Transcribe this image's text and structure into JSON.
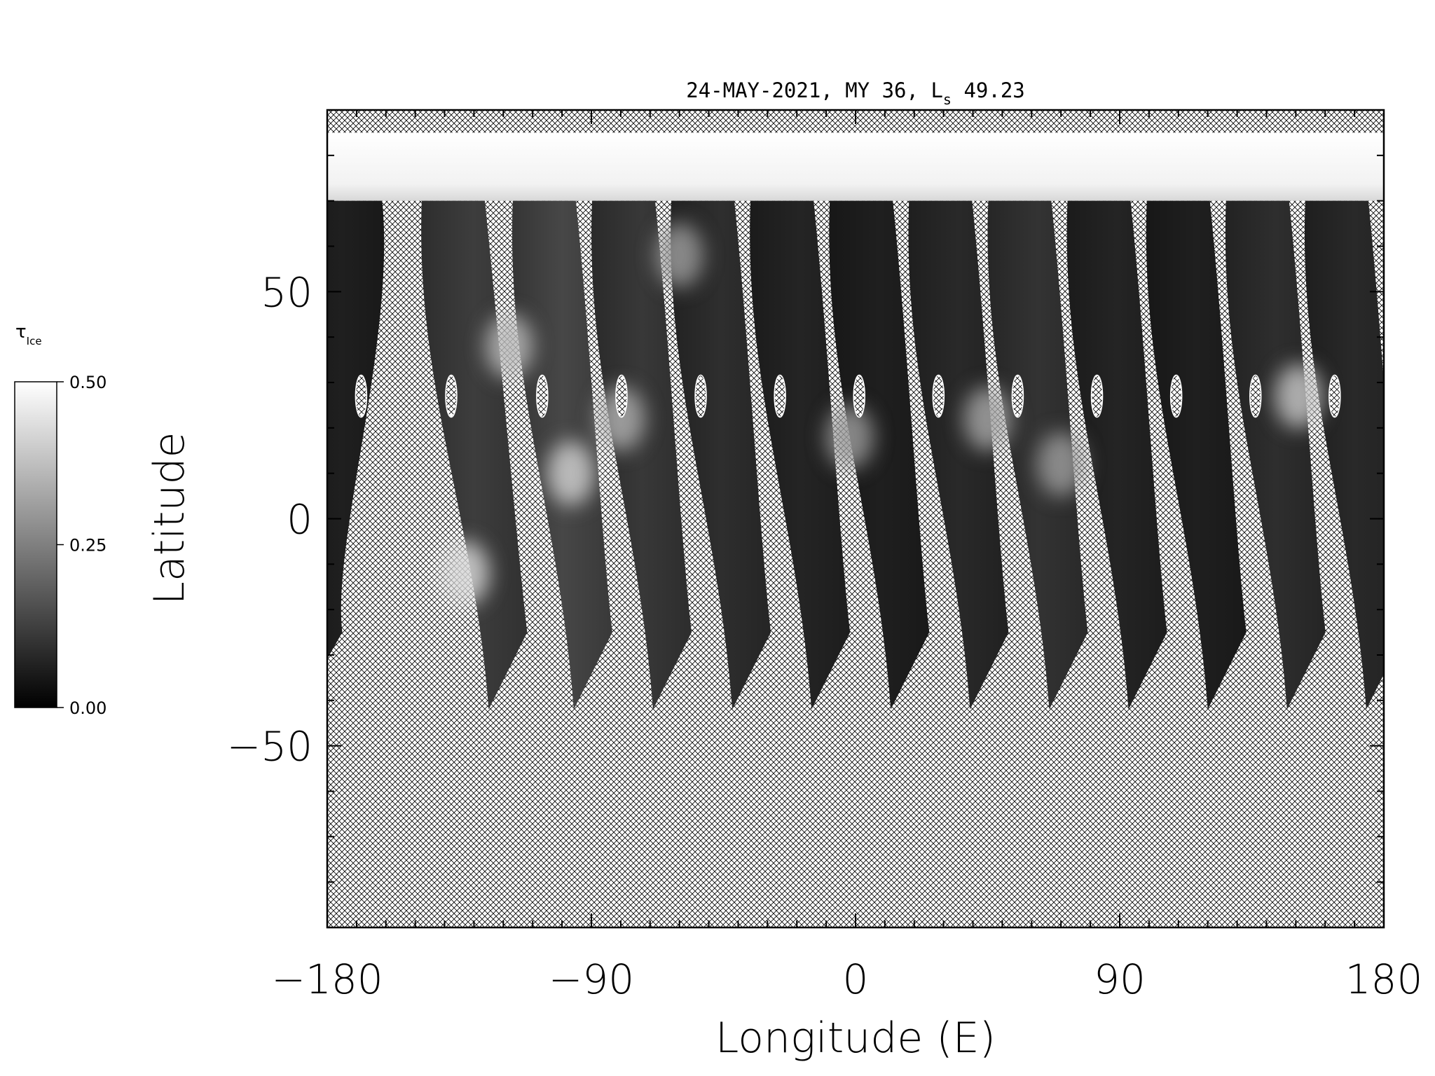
{
  "colors": {
    "background": "#ffffff",
    "axis": "#000000",
    "hatch": "#000000"
  },
  "chart_data": {
    "type": "heatmap",
    "title": {
      "date": "24-MAY-2021",
      "mars_year": "MY 36",
      "ls_symbol": "L",
      "ls_subscript": "s",
      "ls_value": "49.23"
    },
    "xlabel": "Longitude (E)",
    "ylabel": "Latitude",
    "xlim": [
      -180,
      180
    ],
    "ylim": [
      -90,
      90
    ],
    "x_ticks": [
      {
        "value": -180,
        "label": "−180"
      },
      {
        "value": -90,
        "label": "−90"
      },
      {
        "value": 0,
        "label": "0"
      },
      {
        "value": 90,
        "label": "90"
      },
      {
        "value": 180,
        "label": "180"
      }
    ],
    "y_ticks": [
      {
        "value": 50,
        "label": "50"
      },
      {
        "value": 0,
        "label": "0"
      },
      {
        "value": -50,
        "label": "−50"
      }
    ],
    "colorbar": {
      "label_symbol": "τ",
      "label_subscript": "Ice",
      "colormap": "gray",
      "min": 0.0,
      "max": 0.5,
      "ticks": [
        {
          "value": 0.5,
          "label": "0.50"
        },
        {
          "value": 0.25,
          "label": "0.25"
        },
        {
          "value": 0.0,
          "label": "0.00"
        }
      ]
    },
    "no_data_fill": "cross-hatch",
    "polar_cap_lat_min": 70,
    "swaths": [
      {
        "x_top": -178,
        "x_bottom": -188,
        "lat_bottom": -40,
        "tau": 0.06,
        "hole_lat": 27
      },
      {
        "x_top": -143,
        "x_bottom": -125,
        "lat_bottom": -42,
        "tau": 0.12,
        "hole_lat": 27
      },
      {
        "x_top": -112,
        "x_bottom": -96,
        "lat_bottom": -42,
        "tau": 0.14,
        "hole_lat": 27
      },
      {
        "x_top": -85,
        "x_bottom": -69,
        "lat_bottom": -42,
        "tau": 0.11,
        "hole_lat": 27
      },
      {
        "x_top": -58,
        "x_bottom": -42,
        "lat_bottom": -42,
        "tau": 0.09,
        "hole_lat": 27
      },
      {
        "x_top": -31,
        "x_bottom": -15,
        "lat_bottom": -42,
        "tau": 0.07,
        "hole_lat": 27
      },
      {
        "x_top": -4,
        "x_bottom": 12,
        "lat_bottom": -42,
        "tau": 0.06,
        "hole_lat": 27
      },
      {
        "x_top": 23,
        "x_bottom": 39,
        "lat_bottom": -42,
        "tau": 0.08,
        "hole_lat": 27
      },
      {
        "x_top": 50,
        "x_bottom": 66,
        "lat_bottom": -42,
        "tau": 0.1,
        "hole_lat": 27
      },
      {
        "x_top": 77,
        "x_bottom": 93,
        "lat_bottom": -42,
        "tau": 0.07,
        "hole_lat": 27
      },
      {
        "x_top": 104,
        "x_bottom": 120,
        "lat_bottom": -42,
        "tau": 0.06,
        "hole_lat": 27
      },
      {
        "x_top": 131,
        "x_bottom": 147,
        "lat_bottom": -42,
        "tau": 0.09,
        "hole_lat": 27
      },
      {
        "x_top": 158,
        "x_bottom": 174,
        "lat_bottom": -42,
        "tau": 0.08,
        "hole_lat": 27
      }
    ],
    "cloud_patches": [
      {
        "lon": -133,
        "lat": -12,
        "tau": 0.42
      },
      {
        "lon": -118,
        "lat": 38,
        "tau": 0.36
      },
      {
        "lon": -97,
        "lat": 10,
        "tau": 0.4
      },
      {
        "lon": -80,
        "lat": 22,
        "tau": 0.34
      },
      {
        "lon": -60,
        "lat": 58,
        "tau": 0.3
      },
      {
        "lon": -2,
        "lat": 18,
        "tau": 0.3
      },
      {
        "lon": 45,
        "lat": 22,
        "tau": 0.32
      },
      {
        "lon": 70,
        "lat": 12,
        "tau": 0.3
      },
      {
        "lon": 151,
        "lat": 27,
        "tau": 0.38
      }
    ]
  }
}
